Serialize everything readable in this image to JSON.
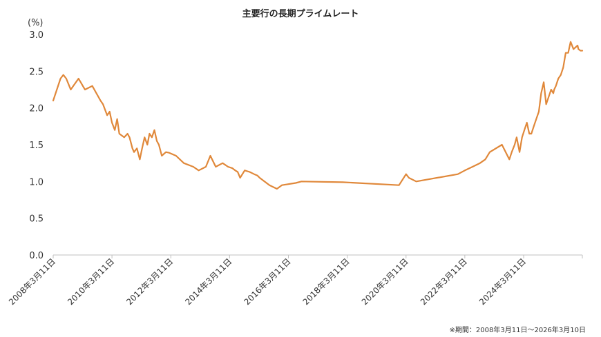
{
  "chart_data": {
    "type": "line",
    "title": "主要行の長期プライムレート",
    "ylabel": "(%)",
    "xlabel": "",
    "note": "※期間：2008年3月11日～2026年3月10日",
    "x_start": "2008-03-11",
    "x_end": "2026-03-10",
    "ylim": [
      0,
      3.0
    ],
    "y_ticks": [
      "0.0",
      "0.5",
      "1.0",
      "1.5",
      "2.0",
      "2.5",
      "3.0"
    ],
    "y_tick_values": [
      0,
      0.5,
      1.0,
      1.5,
      2.0,
      2.5,
      3.0
    ],
    "x_ticks": [
      "2008年3月11日",
      "2010年3月11日",
      "2012年3月11日",
      "2014年3月11日",
      "2016年3月11日",
      "2018年3月11日",
      "2020年3月11日",
      "2022年3月11日",
      "2024年3月11日"
    ],
    "x_tick_dates": [
      "2008-03-11",
      "2010-03-11",
      "2012-03-11",
      "2014-03-11",
      "2016-03-11",
      "2018-03-11",
      "2020-03-11",
      "2022-03-11",
      "2024-03-11"
    ],
    "line_color": "#e0883a",
    "grid": false,
    "series": [
      {
        "x": [
          "2008-03-11",
          "2008-06-10",
          "2008-07-15",
          "2008-08-20",
          "2008-10-15",
          "2009-01-20",
          "2009-04-10",
          "2009-07-10",
          "2009-10-20",
          "2009-11-20",
          "2010-01-10",
          "2010-02-10",
          "2010-03-11",
          "2010-04-15",
          "2010-05-15",
          "2010-06-10",
          "2010-08-10",
          "2010-09-20",
          "2010-10-15",
          "2010-11-20",
          "2010-12-10",
          "2011-01-15",
          "2011-02-20",
          "2011-03-20",
          "2011-04-20",
          "2011-05-25",
          "2011-06-20",
          "2011-07-20",
          "2011-08-20",
          "2011-09-20",
          "2011-10-15",
          "2011-11-20",
          "2012-01-10",
          "2012-02-20",
          "2012-05-15",
          "2012-08-20",
          "2012-12-15",
          "2013-02-20",
          "2013-05-20",
          "2013-07-15",
          "2013-09-20",
          "2013-12-15",
          "2014-02-20",
          "2014-04-15",
          "2014-05-20",
          "2014-06-20",
          "2014-07-20",
          "2014-09-15",
          "2014-11-15",
          "2015-01-10",
          "2015-02-20",
          "2015-03-20",
          "2015-07-20",
          "2015-10-20",
          "2015-12-20",
          "2016-02-20",
          "2016-04-15",
          "2016-06-10",
          "2016-08-20",
          "2018-01-15",
          "2019-12-15",
          "2020-03-11",
          "2020-04-15",
          "2020-07-15",
          "2021-12-15",
          "2022-03-11",
          "2022-06-15",
          "2022-09-15",
          "2022-11-20",
          "2023-01-15",
          "2023-06-15",
          "2023-09-15",
          "2023-10-15",
          "2023-11-20",
          "2023-12-15",
          "2024-01-20",
          "2024-02-20",
          "2024-03-20",
          "2024-04-20",
          "2024-05-20",
          "2024-06-15",
          "2024-07-15",
          "2024-08-15",
          "2024-09-15",
          "2024-10-15",
          "2024-11-15",
          "2024-12-15",
          "2025-01-15",
          "2025-02-15",
          "2025-03-15",
          "2025-03-25",
          "2025-04-15",
          "2025-05-15",
          "2025-06-15",
          "2025-07-15",
          "2025-08-15",
          "2025-09-15",
          "2025-10-15",
          "2025-11-20",
          "2026-01-10",
          "2026-01-20",
          "2026-02-15",
          "2026-03-10"
        ],
        "values": [
          2.1,
          2.4,
          2.45,
          2.4,
          2.25,
          2.4,
          2.25,
          2.3,
          2.1,
          2.05,
          1.9,
          1.95,
          1.8,
          1.7,
          1.85,
          1.65,
          1.6,
          1.65,
          1.6,
          1.45,
          1.4,
          1.45,
          1.3,
          1.45,
          1.6,
          1.5,
          1.65,
          1.6,
          1.7,
          1.55,
          1.5,
          1.35,
          1.4,
          1.39,
          1.35,
          1.25,
          1.2,
          1.15,
          1.2,
          1.35,
          1.2,
          1.25,
          1.2,
          1.18,
          1.15,
          1.13,
          1.05,
          1.15,
          1.13,
          1.1,
          1.08,
          1.05,
          0.95,
          0.9,
          0.95,
          0.96,
          0.97,
          0.98,
          1.0,
          0.99,
          0.95,
          1.1,
          1.05,
          1.0,
          1.1,
          1.15,
          1.2,
          1.25,
          1.3,
          1.4,
          1.5,
          1.3,
          1.4,
          1.5,
          1.6,
          1.4,
          1.6,
          1.7,
          1.8,
          1.65,
          1.65,
          1.75,
          1.85,
          1.95,
          2.2,
          2.35,
          2.05,
          2.15,
          2.25,
          2.2,
          2.25,
          2.3,
          2.4,
          2.45,
          2.55,
          2.75,
          2.75,
          2.9,
          2.8,
          2.85,
          2.8,
          2.78,
          2.78
        ]
      }
    ]
  }
}
